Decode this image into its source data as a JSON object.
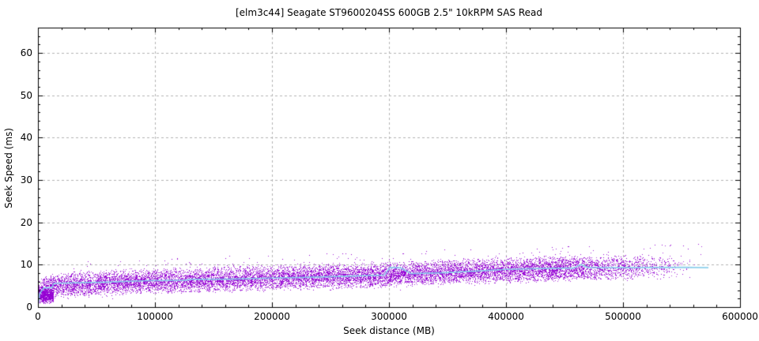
{
  "chart_data": {
    "type": "scatter",
    "title": "[elm3c44] Seagate ST9600204SS 600GB 2.5\" 10kRPM SAS Read",
    "xlabel": "Seek distance (MB)",
    "ylabel": "Seek Speed (ms)",
    "xlim": [
      0,
      600000
    ],
    "ylim": [
      0,
      66
    ],
    "x_ticks": [
      0,
      100000,
      200000,
      300000,
      400000,
      500000,
      600000
    ],
    "x_tick_labels": [
      "0",
      "100000",
      "200000",
      "300000",
      "400000",
      "500000",
      "600000"
    ],
    "y_ticks": [
      0,
      10,
      20,
      30,
      40,
      50,
      60
    ],
    "y_tick_labels": [
      "0",
      "10",
      "20",
      "30",
      "40",
      "50",
      "60"
    ],
    "x_minor_step": 20000,
    "y_minor_step": 2,
    "grid": {
      "show": true,
      "style": "dashed",
      "on": "major",
      "color": "#b3b3b3"
    },
    "axes_color": "#000000",
    "legend": "none",
    "series": [
      {
        "name": "seek-time-samples",
        "type": "scatter",
        "marker": "dot",
        "color": "#9400d3",
        "approx_point_count": 14300,
        "x_extent": [
          0,
          572000
        ],
        "dense_until": 430000,
        "center_curve": [
          [
            0,
            3.9
          ],
          [
            12000,
            4.9
          ],
          [
            40000,
            5.5
          ],
          [
            80000,
            6.0
          ],
          [
            140000,
            6.4
          ],
          [
            200000,
            6.9
          ],
          [
            260000,
            7.3
          ],
          [
            320000,
            7.9
          ],
          [
            380000,
            8.5
          ],
          [
            430000,
            8.9
          ],
          [
            480000,
            9.3
          ],
          [
            530000,
            9.7
          ],
          [
            572000,
            10.0
          ]
        ],
        "spread_below_ms": 3.1,
        "spread_above_ms": 3.3,
        "low_x_cluster": {
          "x_max": 13000,
          "y_range": [
            0.7,
            4.9
          ],
          "count": 700
        },
        "outliers_above": {
          "count": 90,
          "extra_ms": 2.0
        }
      },
      {
        "name": "running-average",
        "type": "line",
        "color": "#87ceeb",
        "width": 1.7,
        "points": [
          [
            0,
            0.35
          ],
          [
            1500,
            3.2
          ],
          [
            5000,
            4.5
          ],
          [
            12000,
            4.6
          ],
          [
            13500,
            5.6
          ],
          [
            30000,
            5.7
          ],
          [
            60000,
            5.9
          ],
          [
            95000,
            6.25
          ],
          [
            125000,
            6.3
          ],
          [
            132000,
            6.55
          ],
          [
            165000,
            6.6
          ],
          [
            200000,
            6.85
          ],
          [
            235000,
            7.05
          ],
          [
            265000,
            7.3
          ],
          [
            296000,
            7.55
          ],
          [
            301000,
            9.35
          ],
          [
            310000,
            9.25
          ],
          [
            319000,
            7.9
          ],
          [
            345000,
            8.1
          ],
          [
            372000,
            8.45
          ],
          [
            400000,
            8.9
          ],
          [
            430000,
            9.1
          ],
          [
            458000,
            9.2
          ],
          [
            464000,
            10.05
          ],
          [
            470000,
            9.35
          ],
          [
            495000,
            9.3
          ],
          [
            525000,
            9.35
          ],
          [
            552000,
            9.4
          ],
          [
            573000,
            9.3
          ]
        ]
      }
    ]
  }
}
